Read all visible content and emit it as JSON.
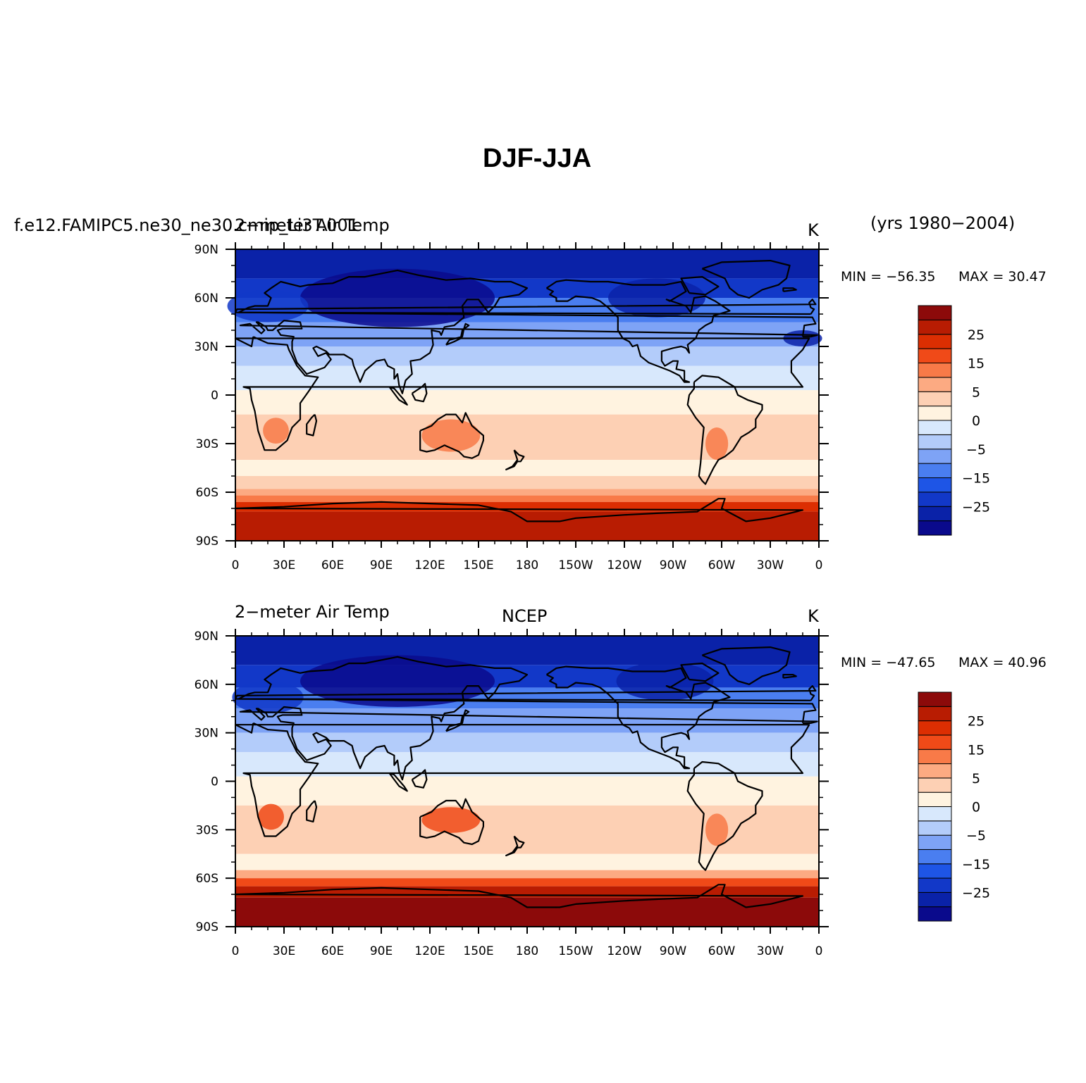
{
  "title": "DJF-JJA",
  "period": "(yrs 1980−2004)",
  "x_ticks": [
    "0",
    "30E",
    "60E",
    "90E",
    "120E",
    "150E",
    "180",
    "150W",
    "120W",
    "90W",
    "60W",
    "30W",
    "0"
  ],
  "y_ticks": [
    "90N",
    "60N",
    "30N",
    "0",
    "30S",
    "60S",
    "90S"
  ],
  "colorbar": {
    "labels": [
      "25",
      "15",
      "5",
      "0",
      "−5",
      "−15",
      "−25"
    ],
    "colors": [
      "#0a0a8c",
      "#0a22a8",
      "#1238c8",
      "#1e55e6",
      "#4a7ef0",
      "#7ea3f6",
      "#b3ccfa",
      "#d8e8fc",
      "#fff3e0",
      "#fdd0b4",
      "#fcaa82",
      "#f87a48",
      "#f04a18",
      "#dc2e02",
      "#b81c02",
      "#8c0a0a"
    ]
  },
  "panels": [
    {
      "id": "model",
      "left_label": "f.e12.FAMIPC5.ne30_ne30.cmip_Li3T.001",
      "center_label": "2−meter Air Temp",
      "units": "K",
      "min_label": "MIN = −56.35",
      "max_label": "MAX =  30.47"
    },
    {
      "id": "ncep",
      "left_label": "2−meter Air Temp",
      "center_label": "NCEP",
      "units": "K",
      "min_label": "MIN = −47.65",
      "max_label": "MAX =  40.96"
    }
  ]
}
